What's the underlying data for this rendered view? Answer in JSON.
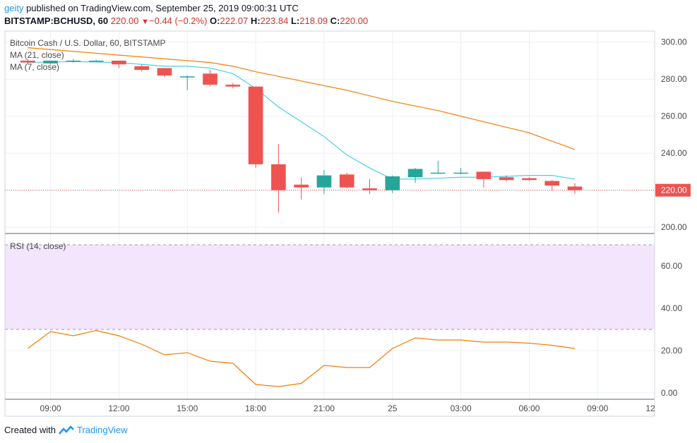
{
  "header": {
    "user": "geity",
    "published": " published on TradingView.com, September 25, 2019 09:00:31 UTC",
    "symbol": "BITSTAMP:BCHUSD, 60",
    "last": "220.00",
    "change_icon": "down-triangle-icon",
    "change": "−0.44 (−0.2%)",
    "o_label": "O:",
    "o_value": "222.07",
    "h_label": "H:",
    "h_value": "223.84",
    "l_label": "L:",
    "l_value": "218.09",
    "c_label": "C:",
    "c_value": "220.00"
  },
  "footer": {
    "created": "Created with",
    "brand": "TradingView",
    "logo_icon": "tradingview-logo-icon"
  },
  "colors": {
    "up": "#26a69a",
    "down": "#ef5350",
    "ma21": "#f57c00",
    "ma7": "#4dd0e1",
    "rsi": "#f57c00",
    "rsi_band": "#f3e5fc",
    "grid": "#eceff2",
    "last_price_tag": "#ef5350"
  },
  "chart_data": {
    "type": "candlestick",
    "title": "Bitcoin Cash / U.S. Dollar, 60, BITSTAMP",
    "price_pane": {
      "legend": [
        "MA (21, close)",
        "MA (7, close)"
      ],
      "y_ticks": [
        "300.00",
        "280.00",
        "260.00",
        "240.00",
        "220.00",
        "200.00"
      ],
      "ylim": [
        197,
        306
      ],
      "last_price": 220.0,
      "last_price_label": "220.00",
      "candles": [
        {
          "t": 8,
          "o": 290,
          "h": 291,
          "l": 288,
          "c": 289
        },
        {
          "t": 9,
          "o": 288.5,
          "h": 290,
          "l": 288,
          "c": 290
        },
        {
          "t": 10,
          "o": 290,
          "h": 291,
          "l": 289,
          "c": 290
        },
        {
          "t": 11,
          "o": 290,
          "h": 290.5,
          "l": 289.5,
          "c": 290
        },
        {
          "t": 12,
          "o": 290,
          "h": 290,
          "l": 286,
          "c": 288
        },
        {
          "t": 13,
          "o": 287,
          "h": 288,
          "l": 284,
          "c": 285
        },
        {
          "t": 14,
          "o": 286,
          "h": 286,
          "l": 281,
          "c": 282
        },
        {
          "t": 15,
          "o": 281,
          "h": 282,
          "l": 274,
          "c": 281.5
        },
        {
          "t": 16,
          "o": 283,
          "h": 285,
          "l": 276,
          "c": 277
        },
        {
          "t": 17,
          "o": 277,
          "h": 278,
          "l": 275,
          "c": 276
        },
        {
          "t": 18,
          "o": 276,
          "h": 276,
          "l": 232,
          "c": 234
        },
        {
          "t": 19,
          "o": 234,
          "h": 245,
          "l": 208,
          "c": 220
        },
        {
          "t": 20,
          "o": 223,
          "h": 227,
          "l": 215,
          "c": 221.5
        },
        {
          "t": 21,
          "o": 221.5,
          "h": 231,
          "l": 218,
          "c": 228
        },
        {
          "t": 22,
          "o": 228.5,
          "h": 229.5,
          "l": 221,
          "c": 221.5
        },
        {
          "t": 23,
          "o": 221,
          "h": 226,
          "l": 218,
          "c": 220
        },
        {
          "t": 24,
          "o": 220,
          "h": 228,
          "l": 218.5,
          "c": 227.5
        },
        {
          "t": 25,
          "o": 227,
          "h": 232,
          "l": 224,
          "c": 231.5
        },
        {
          "t": 26,
          "o": 229,
          "h": 236,
          "l": 229,
          "c": 229.5
        },
        {
          "t": 27,
          "o": 229.5,
          "h": 232,
          "l": 228.5,
          "c": 229.5
        },
        {
          "t": 28,
          "o": 230,
          "h": 230,
          "l": 221.5,
          "c": 226
        },
        {
          "t": 29,
          "o": 227,
          "h": 228,
          "l": 225,
          "c": 225.5
        },
        {
          "t": 30,
          "o": 226.5,
          "h": 227,
          "l": 225,
          "c": 225.5
        },
        {
          "t": 31,
          "o": 225,
          "h": 225.5,
          "l": 219.5,
          "c": 222.5
        },
        {
          "t": 32,
          "o": 222,
          "h": 223.8,
          "l": 218.1,
          "c": 220
        }
      ],
      "ma21": [
        {
          "t": 8,
          "v": 297
        },
        {
          "t": 10,
          "v": 295
        },
        {
          "t": 12,
          "v": 293
        },
        {
          "t": 14,
          "v": 291
        },
        {
          "t": 16,
          "v": 289
        },
        {
          "t": 17,
          "v": 287
        },
        {
          "t": 18,
          "v": 284
        },
        {
          "t": 20,
          "v": 279
        },
        {
          "t": 22,
          "v": 274
        },
        {
          "t": 24,
          "v": 268
        },
        {
          "t": 26,
          "v": 263
        },
        {
          "t": 28,
          "v": 257
        },
        {
          "t": 30,
          "v": 251
        },
        {
          "t": 32,
          "v": 242
        }
      ],
      "ma7": [
        {
          "t": 8,
          "v": 289
        },
        {
          "t": 10,
          "v": 289.5
        },
        {
          "t": 12,
          "v": 289
        },
        {
          "t": 14,
          "v": 287
        },
        {
          "t": 15,
          "v": 287
        },
        {
          "t": 16,
          "v": 286
        },
        {
          "t": 17,
          "v": 283
        },
        {
          "t": 18,
          "v": 275
        },
        {
          "t": 19,
          "v": 265
        },
        {
          "t": 20,
          "v": 257
        },
        {
          "t": 21,
          "v": 249
        },
        {
          "t": 22,
          "v": 239
        },
        {
          "t": 23,
          "v": 232
        },
        {
          "t": 24,
          "v": 226
        },
        {
          "t": 25,
          "v": 226
        },
        {
          "t": 27,
          "v": 227
        },
        {
          "t": 28,
          "v": 227
        },
        {
          "t": 30,
          "v": 228
        },
        {
          "t": 31,
          "v": 228
        },
        {
          "t": 32,
          "v": 226
        }
      ]
    },
    "rsi_pane": {
      "legend": "RSI (14, close)",
      "y_ticks": [
        "60.00",
        "40.00",
        "20.00",
        "0.00"
      ],
      "ylim": [
        -3,
        75
      ],
      "band": [
        30,
        70
      ],
      "values": [
        {
          "t": 8,
          "v": 21
        },
        {
          "t": 9,
          "v": 29
        },
        {
          "t": 10,
          "v": 27
        },
        {
          "t": 11,
          "v": 29.5
        },
        {
          "t": 12,
          "v": 27
        },
        {
          "t": 13,
          "v": 23
        },
        {
          "t": 14,
          "v": 18
        },
        {
          "t": 15,
          "v": 19
        },
        {
          "t": 16,
          "v": 15
        },
        {
          "t": 17,
          "v": 14
        },
        {
          "t": 18,
          "v": 4
        },
        {
          "t": 19,
          "v": 3
        },
        {
          "t": 20,
          "v": 4.5
        },
        {
          "t": 21,
          "v": 13
        },
        {
          "t": 22,
          "v": 12
        },
        {
          "t": 23,
          "v": 12
        },
        {
          "t": 24,
          "v": 21
        },
        {
          "t": 25,
          "v": 26
        },
        {
          "t": 26,
          "v": 25
        },
        {
          "t": 27,
          "v": 25
        },
        {
          "t": 28,
          "v": 24
        },
        {
          "t": 29,
          "v": 24
        },
        {
          "t": 30,
          "v": 23.5
        },
        {
          "t": 31,
          "v": 22.5
        },
        {
          "t": 32,
          "v": 21
        }
      ]
    },
    "x_axis": {
      "xlim": [
        7,
        35.5
      ],
      "ticks": [
        {
          "t": 9,
          "label": "09:00"
        },
        {
          "t": 12,
          "label": "12:00"
        },
        {
          "t": 15,
          "label": "15:00"
        },
        {
          "t": 18,
          "label": "18:00"
        },
        {
          "t": 21,
          "label": "21:00"
        },
        {
          "t": 24,
          "label": "25"
        },
        {
          "t": 27,
          "label": "03:00"
        },
        {
          "t": 30,
          "label": "06:00"
        },
        {
          "t": 33,
          "label": "09:00"
        },
        {
          "t": 36,
          "label": "12"
        }
      ]
    },
    "grid": true
  }
}
